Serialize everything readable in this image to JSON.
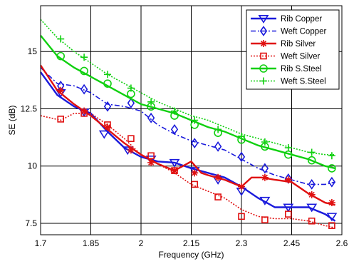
{
  "chart_data": {
    "type": "line",
    "xlabel": "Frequency (GHz)",
    "ylabel": "SE (dB)",
    "xlim": [
      1.7,
      2.6
    ],
    "ylim": [
      7.0,
      17.0
    ],
    "x_ticks": [
      1.7,
      1.85,
      2,
      2.15,
      2.3,
      2.45,
      2.6
    ],
    "x_tick_labels": [
      "1.7",
      "1.85",
      "2",
      "2.15",
      "2.3",
      "2.45",
      "2.6"
    ],
    "y_ticks": [
      7.5,
      10,
      12.5,
      15
    ],
    "y_tick_labels": [
      "7.5",
      "10",
      "12.5",
      "15"
    ],
    "grid": true,
    "legend_position": "top-right",
    "series": [
      {
        "name": "Rib Copper",
        "color": "#1a1adc",
        "style": "solid",
        "marker": "triangle-down",
        "x": [
          1.7,
          1.75,
          1.8,
          1.85,
          1.9,
          1.95,
          2.0,
          2.05,
          2.1,
          2.15,
          2.2,
          2.25,
          2.3,
          2.35,
          2.4,
          2.45,
          2.5,
          2.55,
          2.58
        ],
        "y": [
          14.1,
          13.1,
          12.6,
          12.3,
          11.5,
          10.8,
          10.4,
          10.2,
          10.15,
          9.9,
          9.7,
          9.5,
          9.1,
          8.6,
          8.2,
          8.2,
          8.2,
          7.9,
          7.6
        ],
        "marker_x": [
          1.76,
          1.83,
          1.89,
          1.96,
          2.03,
          2.1,
          2.16,
          2.23,
          2.3,
          2.37,
          2.44,
          2.51,
          2.57
        ],
        "marker_y": [
          13.2,
          12.35,
          11.4,
          10.7,
          10.3,
          10.15,
          9.8,
          9.4,
          8.9,
          8.5,
          8.2,
          8.2,
          7.8
        ]
      },
      {
        "name": "Weft Copper",
        "color": "#1a1adc",
        "style": "dashdot",
        "marker": "diamond",
        "x": [
          1.7,
          1.75,
          1.8,
          1.85,
          1.9,
          1.95,
          2.0,
          2.05,
          2.1,
          2.15,
          2.2,
          2.25,
          2.3,
          2.35,
          2.4,
          2.45,
          2.5,
          2.55,
          2.58
        ],
        "y": [
          14.3,
          13.6,
          13.5,
          13.2,
          12.7,
          12.6,
          12.4,
          11.8,
          11.4,
          11.1,
          10.9,
          10.7,
          10.3,
          9.9,
          9.6,
          9.4,
          9.2,
          9.2,
          9.3
        ],
        "marker_x": [
          1.76,
          1.83,
          1.9,
          1.97,
          2.03,
          2.1,
          2.16,
          2.23,
          2.3,
          2.37,
          2.44,
          2.51,
          2.57
        ],
        "marker_y": [
          13.5,
          13.35,
          12.6,
          12.75,
          12.1,
          11.6,
          11.0,
          10.85,
          10.4,
          9.9,
          9.45,
          9.2,
          9.3
        ]
      },
      {
        "name": "Rib Silver",
        "color": "#e01010",
        "style": "solid",
        "marker": "star",
        "x": [
          1.7,
          1.75,
          1.8,
          1.85,
          1.9,
          1.95,
          2.0,
          2.05,
          2.1,
          2.15,
          2.18,
          2.2,
          2.25,
          2.3,
          2.33,
          2.36,
          2.4,
          2.45,
          2.5,
          2.55,
          2.58
        ],
        "y": [
          14.4,
          13.3,
          12.7,
          12.2,
          11.6,
          11.0,
          10.5,
          10.1,
          9.8,
          10.2,
          9.7,
          9.6,
          9.4,
          9.1,
          9.5,
          9.5,
          9.4,
          9.3,
          8.8,
          8.4,
          8.3
        ],
        "marker_x": [
          1.76,
          1.83,
          1.9,
          1.97,
          2.03,
          2.1,
          2.16,
          2.23,
          2.3,
          2.37,
          2.44,
          2.51,
          2.57
        ],
        "marker_y": [
          13.3,
          12.4,
          11.7,
          10.7,
          10.15,
          9.8,
          9.7,
          9.5,
          9.1,
          9.5,
          9.4,
          8.75,
          8.4
        ]
      },
      {
        "name": "Weft Silver",
        "color": "#e01010",
        "style": "dotted",
        "marker": "square",
        "x": [
          1.7,
          1.73,
          1.76,
          1.8,
          1.85,
          1.9,
          1.95,
          2.0,
          2.05,
          2.1,
          2.15,
          2.2,
          2.25,
          2.3,
          2.35,
          2.4,
          2.45,
          2.5,
          2.55,
          2.58
        ],
        "y": [
          12.2,
          12.1,
          12.0,
          12.3,
          12.3,
          11.8,
          11.2,
          10.5,
          10.1,
          9.7,
          9.2,
          8.9,
          8.6,
          8.1,
          7.8,
          7.7,
          7.7,
          7.6,
          7.4,
          7.3
        ],
        "marker_x": [
          1.76,
          1.83,
          1.9,
          1.97,
          2.03,
          2.1,
          2.16,
          2.23,
          2.3,
          2.37,
          2.44,
          2.51,
          2.57
        ],
        "marker_y": [
          12.05,
          12.3,
          11.8,
          11.2,
          10.45,
          9.8,
          9.2,
          8.65,
          7.8,
          7.65,
          7.9,
          7.6,
          7.4
        ]
      },
      {
        "name": "Rib S.Steel",
        "color": "#10d010",
        "style": "solid",
        "marker": "circle",
        "x": [
          1.7,
          1.75,
          1.8,
          1.85,
          1.9,
          1.95,
          2.0,
          2.05,
          2.1,
          2.15,
          2.2,
          2.25,
          2.3,
          2.35,
          2.4,
          2.45,
          2.5,
          2.55,
          2.58
        ],
        "y": [
          15.7,
          14.8,
          14.3,
          13.9,
          13.5,
          13.1,
          12.7,
          12.5,
          12.3,
          12.0,
          11.7,
          11.5,
          11.2,
          10.9,
          10.7,
          10.5,
          10.3,
          10.0,
          9.9
        ],
        "marker_x": [
          1.76,
          1.83,
          1.9,
          1.97,
          2.03,
          2.1,
          2.16,
          2.23,
          2.3,
          2.37,
          2.44,
          2.51,
          2.57
        ],
        "marker_y": [
          14.8,
          14.15,
          13.6,
          13.15,
          12.6,
          12.2,
          11.8,
          11.45,
          11.15,
          10.85,
          10.5,
          10.25,
          9.9
        ]
      },
      {
        "name": "Weft S.Steel",
        "color": "#10d010",
        "style": "dotted",
        "marker": "plus",
        "x": [
          1.7,
          1.75,
          1.8,
          1.85,
          1.9,
          1.95,
          2.0,
          2.05,
          2.1,
          2.15,
          2.2,
          2.25,
          2.3,
          2.35,
          2.4,
          2.45,
          2.5,
          2.55,
          2.58
        ],
        "y": [
          16.4,
          15.6,
          15.0,
          14.5,
          14.0,
          13.6,
          13.2,
          12.8,
          12.5,
          12.2,
          12.0,
          11.7,
          11.4,
          11.2,
          11.0,
          10.8,
          10.6,
          10.5,
          10.5
        ],
        "marker_x": [
          1.76,
          1.83,
          1.9,
          1.97,
          2.03,
          2.1,
          2.16,
          2.23,
          2.3,
          2.37,
          2.44,
          2.51,
          2.57
        ],
        "marker_y": [
          15.55,
          14.75,
          14.0,
          13.4,
          12.8,
          12.4,
          12.0,
          11.6,
          11.3,
          11.05,
          10.8,
          10.6,
          10.45
        ]
      }
    ]
  }
}
